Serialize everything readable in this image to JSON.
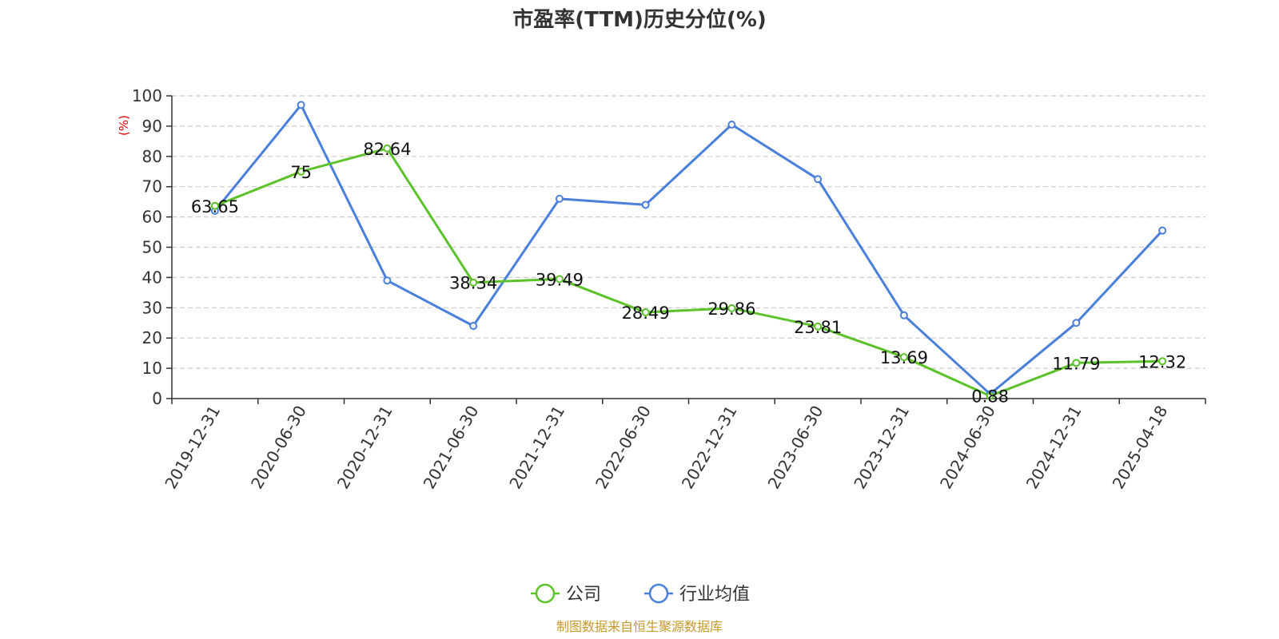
{
  "chart_data": {
    "type": "line",
    "title": "市盈率(TTM)历史分位(%)",
    "ylabel": "(%)",
    "ylim": [
      0,
      100
    ],
    "yticks": [
      0,
      10,
      20,
      30,
      40,
      50,
      60,
      70,
      80,
      90,
      100
    ],
    "grid": true,
    "legend_position": "bottom-center",
    "categories": [
      "2019-12-31",
      "2020-06-30",
      "2020-12-31",
      "2021-06-30",
      "2021-12-31",
      "2022-06-30",
      "2022-12-31",
      "2023-06-30",
      "2023-12-31",
      "2024-06-30",
      "2024-12-31",
      "2025-04-18"
    ],
    "series": [
      {
        "name": "公司",
        "color": "#5cc22a",
        "values": [
          63.65,
          75,
          82.64,
          38.34,
          39.49,
          28.49,
          29.86,
          23.81,
          13.69,
          0.88,
          11.79,
          12.32
        ],
        "labels": [
          "63.65",
          "75",
          "82.64",
          "38.34",
          "39.49",
          "28.49",
          "29.86",
          "23.81",
          "13.69",
          "0.88",
          "11.79",
          "12.32"
        ]
      },
      {
        "name": "行业均值",
        "color": "#4a7fdb",
        "values": [
          62,
          97,
          39,
          24,
          66,
          64,
          90.5,
          72.5,
          27.5,
          1.5,
          25,
          55.5
        ]
      }
    ]
  },
  "source_note": "制图数据来自恒生聚源数据库"
}
